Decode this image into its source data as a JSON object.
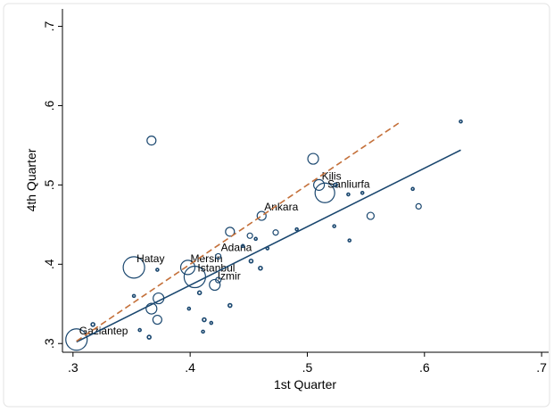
{
  "chart_data": {
    "type": "scatter",
    "x_label": "1st Quarter",
    "y_label": "4th Quarter",
    "xlim": [
      0.291,
      0.706
    ],
    "ylim": [
      0.289,
      0.722
    ],
    "xticks": [
      {
        "value": 0.3,
        "label": ".3"
      },
      {
        "value": 0.4,
        "label": ".4"
      },
      {
        "value": 0.5,
        "label": ".5"
      },
      {
        "value": 0.6,
        "label": ".6"
      },
      {
        "value": 0.7,
        "label": ".7"
      }
    ],
    "yticks": [
      {
        "value": 0.3,
        "label": ".3"
      },
      {
        "value": 0.4,
        "label": ".4"
      },
      {
        "value": 0.5,
        "label": ".5"
      },
      {
        "value": 0.6,
        "label": ".6"
      },
      {
        "value": 0.7,
        "label": ".7"
      }
    ],
    "color": "#1a476f",
    "x": [
      0.303,
      0.352,
      0.367,
      0.373,
      0.367,
      0.372,
      0.352,
      0.372,
      0.317,
      0.357,
      0.365,
      0.398,
      0.404,
      0.421,
      0.424,
      0.408,
      0.399,
      0.412,
      0.418,
      0.411,
      0.434,
      0.434,
      0.424,
      0.445,
      0.451,
      0.456,
      0.461,
      0.452,
      0.46,
      0.466,
      0.473,
      0.491,
      0.505,
      0.51,
      0.515,
      0.524,
      0.523,
      0.535,
      0.536,
      0.547,
      0.554,
      0.59,
      0.595,
      0.631
    ],
    "y": [
      0.305,
      0.396,
      0.556,
      0.357,
      0.344,
      0.33,
      0.36,
      0.393,
      0.324,
      0.317,
      0.308,
      0.396,
      0.384,
      0.374,
      0.38,
      0.364,
      0.344,
      0.33,
      0.326,
      0.315,
      0.348,
      0.441,
      0.41,
      0.423,
      0.436,
      0.432,
      0.461,
      0.404,
      0.395,
      0.42,
      0.44,
      0.444,
      0.533,
      0.5,
      0.49,
      0.5,
      0.448,
      0.488,
      0.43,
      0.49,
      0.461,
      0.495,
      0.473,
      0.58
    ],
    "sizes": [
      12,
      12,
      5,
      6,
      6,
      5,
      1.5,
      1.5,
      2,
      1.5,
      2,
      8,
      12,
      6,
      3,
      2,
      1.5,
      2,
      1.5,
      1.5,
      2,
      5,
      3,
      1.5,
      3,
      1.5,
      5,
      2,
      2,
      1.5,
      3,
      1.5,
      6,
      6,
      11,
      2,
      1.5,
      1.5,
      1.5,
      1.5,
      4,
      1.5,
      3,
      1.5
    ],
    "labels": [
      "Gaziantep",
      "Hatay",
      null,
      null,
      null,
      null,
      null,
      null,
      null,
      null,
      null,
      "Mersin",
      "Istanbul",
      "Izmir",
      null,
      null,
      null,
      null,
      null,
      null,
      null,
      null,
      "Adana",
      null,
      null,
      null,
      "Ankara",
      null,
      null,
      null,
      null,
      null,
      null,
      "Kilis",
      "Sanliurfa",
      null,
      null,
      null,
      null,
      null,
      null,
      null,
      null,
      null
    ],
    "lines": [
      {
        "x": [
          0.303,
          0.631
        ],
        "y": [
          0.302,
          0.544
        ],
        "color": "#1a476f",
        "dashed": false
      },
      {
        "x": [
          0.303,
          0.578
        ],
        "y": [
          0.303,
          0.578
        ],
        "color": "#c4703a",
        "dashed": true
      }
    ]
  }
}
